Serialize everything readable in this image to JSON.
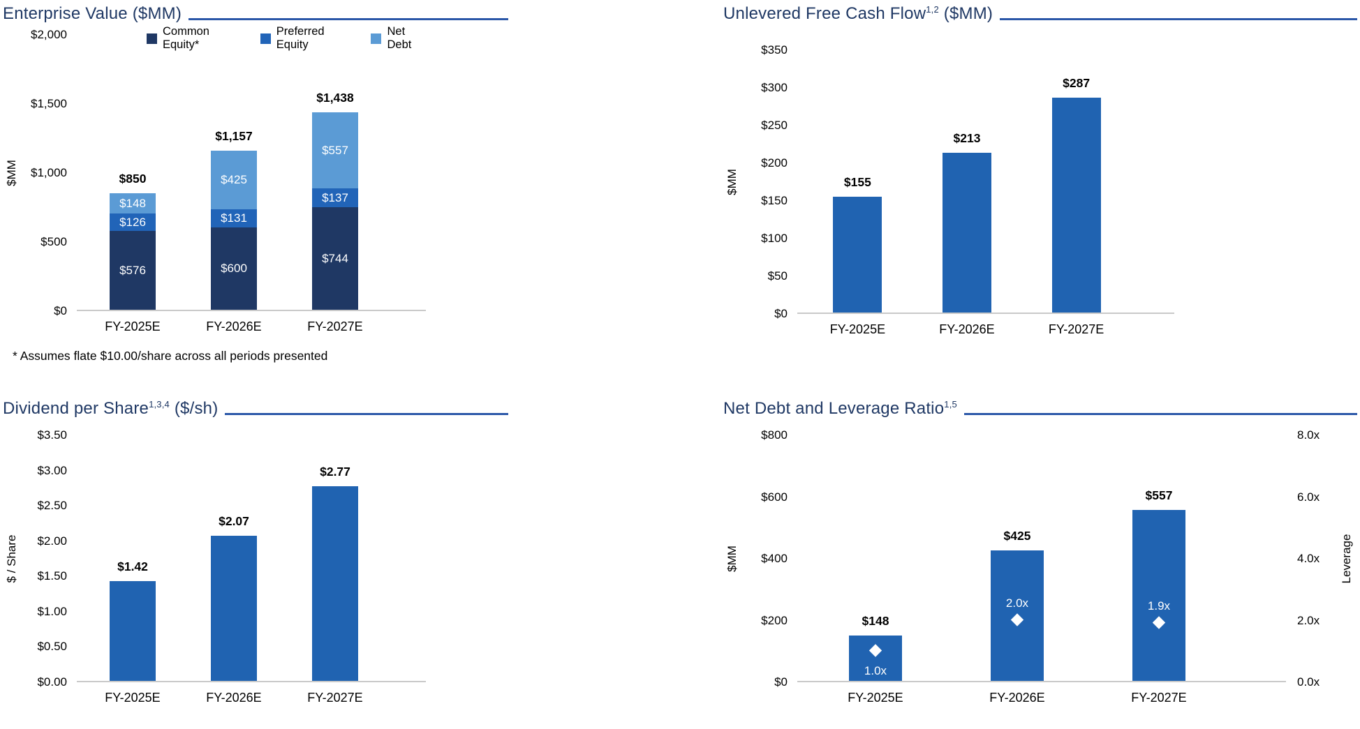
{
  "page_background": "#FFFFFF",
  "colors": {
    "title_text": "#1F3864",
    "title_rule": "#2B57A8",
    "baseline": "#C9C9C9",
    "navy": "#1F3864",
    "medium_blue": "#2164B8",
    "light_blue": "#5B9BD5",
    "single_bar_blue": "#2063B1",
    "marker_white": "#FFFFFF",
    "value_label_text": "#000000",
    "segment_label_text": "#FFFFFF"
  },
  "footnote": "* Assumes flate $10.00/share across all periods presented",
  "chart_data": [
    {
      "id": "enterprise-value",
      "type": "bar",
      "subtype": "stacked",
      "title_parts": [
        {
          "text": "Enterprise Value ($MM)"
        }
      ],
      "ylabel": "$MM",
      "ylim": [
        0,
        2000
      ],
      "y_ticks": [
        "$2,000",
        "$1,500",
        "$1,000",
        "$500",
        "$0"
      ],
      "categories": [
        "FY-2025E",
        "FY-2026E",
        "FY-2027E"
      ],
      "legend": [
        {
          "label": "Common Equity*",
          "color": "#1F3864"
        },
        {
          "label": "Preferred Equity",
          "color": "#2164B8"
        },
        {
          "label": "Net Debt",
          "color": "#5B9BD5"
        }
      ],
      "series": [
        {
          "name": "Common Equity*",
          "color": "#1F3864",
          "values": [
            576,
            600,
            744
          ],
          "labels": [
            "$576",
            "$600",
            "$744"
          ]
        },
        {
          "name": "Preferred Equity",
          "color": "#2164B8",
          "values": [
            126,
            131,
            137
          ],
          "labels": [
            "$126",
            "$131",
            "$137"
          ]
        },
        {
          "name": "Net Debt",
          "color": "#5B9BD5",
          "values": [
            148,
            425,
            557
          ],
          "labels": [
            "$148",
            "$425",
            "$557"
          ]
        }
      ],
      "totals": [
        850,
        1157,
        1438
      ],
      "total_labels": [
        "$850",
        "$1,157",
        "$1,438"
      ],
      "grid": false,
      "legend_position": "top"
    },
    {
      "id": "unlevered-fcf",
      "type": "bar",
      "subtype": "simple",
      "title_parts": [
        {
          "text": "Unlevered Free Cash Flow"
        },
        {
          "sup": "1,2"
        },
        {
          "text": " ($MM)"
        }
      ],
      "ylabel": "$MM",
      "ylim": [
        0,
        350
      ],
      "y_ticks": [
        "$350",
        "$300",
        "$250",
        "$200",
        "$150",
        "$100",
        "$50",
        "$0"
      ],
      "categories": [
        "FY-2025E",
        "FY-2026E",
        "FY-2027E"
      ],
      "bar_color": "#2063B1",
      "values": [
        155,
        213,
        287
      ],
      "value_labels": [
        "$155",
        "$213",
        "$287"
      ],
      "grid": false
    },
    {
      "id": "dividend-per-share",
      "type": "bar",
      "subtype": "simple",
      "title_parts": [
        {
          "text": "Dividend per Share"
        },
        {
          "sup": "1,3,4"
        },
        {
          "text": " ($/sh)"
        }
      ],
      "ylabel": "$ / Share",
      "ylim": [
        0,
        3.5
      ],
      "y_ticks": [
        "$3.50",
        "$3.00",
        "$2.50",
        "$2.00",
        "$1.50",
        "$1.00",
        "$0.50",
        "$0.00"
      ],
      "categories": [
        "FY-2025E",
        "FY-2026E",
        "FY-2027E"
      ],
      "bar_color": "#2063B1",
      "values": [
        1.42,
        2.07,
        2.77
      ],
      "value_labels": [
        "$1.42",
        "$2.07",
        "$2.77"
      ],
      "grid": false
    },
    {
      "id": "net-debt-leverage",
      "type": "bar",
      "subtype": "dual-axis",
      "title_parts": [
        {
          "text": "Net Debt and Leverage Ratio"
        },
        {
          "sup": "1,5"
        }
      ],
      "ylabel": "$MM",
      "ylim": [
        0,
        800
      ],
      "y_ticks": [
        "$800",
        "$600",
        "$400",
        "$200",
        "$0"
      ],
      "y2label": "Leverage",
      "y2lim": [
        0,
        8
      ],
      "y2_ticks": [
        "8.0x",
        "6.0x",
        "4.0x",
        "2.0x",
        "0.0x"
      ],
      "categories": [
        "FY-2025E",
        "FY-2026E",
        "FY-2027E"
      ],
      "bar_color": "#2063B1",
      "values": [
        148,
        425,
        557
      ],
      "value_labels": [
        "$148",
        "$425",
        "$557"
      ],
      "markers": {
        "name": "Leverage",
        "color": "#FFFFFF",
        "values": [
          1.0,
          2.0,
          1.9
        ],
        "labels": [
          "1.0x",
          "2.0x",
          "1.9x"
        ],
        "label_positions": [
          "below",
          "above",
          "above"
        ]
      },
      "grid": false
    }
  ]
}
